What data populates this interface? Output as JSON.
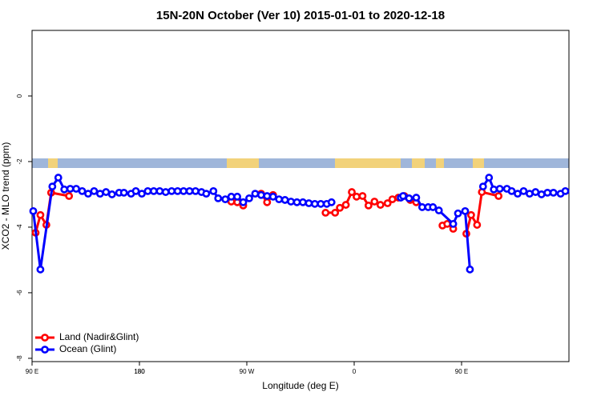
{
  "chart_data": {
    "type": "line",
    "title": "15N-20N October (Ver 10)   2015-01-01 to 2020-12-18",
    "x_label": "Longitude (deg E)",
    "y_label": "XCO2 - MLO trend (ppm)",
    "xlim": [
      90,
      540
    ],
    "ylim": [
      -8.1,
      2
    ],
    "xticks": [
      {
        "value": 90,
        "label": "90 E"
      },
      180,
      {
        "value": 270,
        "label": "90 W"
      },
      {
        "value": 360,
        "label": "0"
      },
      {
        "value": 450,
        "label": "90 E"
      },
      180.0
    ],
    "yticks": [
      0,
      -2,
      -4,
      -6,
      -8
    ],
    "legend": "bottom-left",
    "series": [
      {
        "name": "Land (Nadir&Glint)",
        "color": "#ff0000",
        "x": [
          93,
          97,
          102,
          106,
          121,
          null,
          257,
          262,
          267,
          null,
          282,
          287,
          292,
          null,
          336,
          344,
          348,
          353,
          358,
          362,
          367,
          372,
          377,
          382,
          388,
          392,
          397,
          402,
          407,
          412,
          null,
          434,
          438,
          443,
          null,
          454,
          458,
          463,
          467,
          481
        ],
        "values": [
          -4.17,
          -3.63,
          -3.93,
          -2.95,
          -3.05,
          null,
          -3.22,
          -3.24,
          -3.34,
          null,
          -2.98,
          -3.24,
          -3.02,
          null,
          -3.56,
          -3.56,
          -3.41,
          -3.32,
          -2.93,
          -3.07,
          -3.05,
          -3.34,
          -3.22,
          -3.32,
          -3.27,
          -3.15,
          -3.1,
          -3.05,
          -3.17,
          -3.24,
          null,
          -3.95,
          -3.9,
          -4.05,
          null,
          -4.2,
          -3.63,
          -3.93,
          -2.93,
          -3.05
        ]
      },
      {
        "name": "Ocean (Glint)",
        "color": "#0000ff",
        "x": [
          91,
          97,
          107,
          112,
          117,
          122,
          127,
          132,
          137,
          142,
          147,
          152,
          157,
          163,
          167,
          173,
          177,
          182,
          187,
          192,
          197,
          202,
          207,
          212,
          217,
          222,
          227,
          232,
          236,
          242,
          246,
          252,
          257,
          262,
          267,
          272,
          277,
          282,
          287,
          292,
          297,
          302,
          307,
          312,
          317,
          322,
          327,
          332,
          337,
          341,
          null,
          399,
          401,
          406,
          412,
          417,
          422,
          426,
          431,
          443,
          447,
          453,
          457,
          null,
          468,
          473,
          477,
          482,
          488,
          492,
          497,
          502,
          507,
          512,
          517,
          522,
          527,
          533,
          537
        ],
        "values": [
          -3.51,
          -5.29,
          -2.76,
          -2.49,
          -2.85,
          -2.83,
          -2.83,
          -2.9,
          -2.98,
          -2.9,
          -2.98,
          -2.93,
          -3.0,
          -2.95,
          -2.95,
          -2.98,
          -2.9,
          -2.98,
          -2.9,
          -2.9,
          -2.9,
          -2.93,
          -2.9,
          -2.9,
          -2.9,
          -2.9,
          -2.9,
          -2.93,
          -2.98,
          -2.9,
          -3.12,
          -3.15,
          -3.07,
          -3.07,
          -3.24,
          -3.12,
          -2.98,
          -3.02,
          -3.05,
          -3.07,
          -3.15,
          -3.17,
          -3.22,
          -3.24,
          -3.24,
          -3.27,
          -3.29,
          -3.29,
          -3.29,
          -3.24,
          null,
          -3.1,
          -3.05,
          -3.12,
          -3.1,
          -3.39,
          -3.39,
          -3.39,
          -3.49,
          -3.9,
          -3.58,
          -3.51,
          -5.29,
          null,
          -2.76,
          -2.49,
          -2.85,
          -2.83,
          -2.83,
          -2.9,
          -2.98,
          -2.9,
          -2.98,
          -2.93,
          -3.0,
          -2.95,
          -2.95,
          -2.98,
          -2.9
        ]
      }
    ]
  }
}
